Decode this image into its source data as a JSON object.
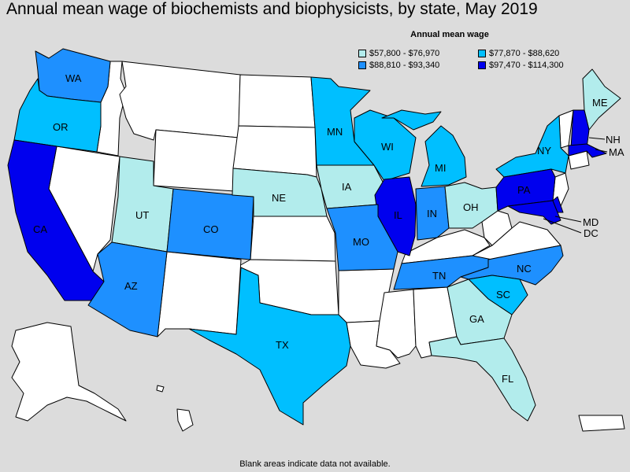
{
  "title": "Annual mean wage of biochemists and biophysicists, by state, May 2019",
  "legend": {
    "title": "Annual mean wage",
    "bins": [
      {
        "label": "$57,800 - $76,970",
        "color": "#b2ecec"
      },
      {
        "label": "$77,870 - $88,620",
        "color": "#00bfff"
      },
      {
        "label": "$88,810 - $93,340",
        "color": "#1e90ff"
      },
      {
        "label": "$97,470 - $114,300",
        "color": "#0000ee"
      }
    ]
  },
  "footnote": "Blank areas indicate data not available.",
  "colors": {
    "no_data": "#ffffff",
    "background": "#dcdcdc"
  },
  "states": {
    "WA": {
      "label": "WA",
      "bin": 2
    },
    "OR": {
      "label": "OR",
      "bin": 1
    },
    "CA": {
      "label": "CA",
      "bin": 3
    },
    "UT": {
      "label": "UT",
      "bin": 0
    },
    "CO": {
      "label": "CO",
      "bin": 2
    },
    "AZ": {
      "label": "AZ",
      "bin": 2
    },
    "NE": {
      "label": "NE",
      "bin": 0
    },
    "IA": {
      "label": "IA",
      "bin": 0
    },
    "MN": {
      "label": "MN",
      "bin": 1
    },
    "WI": {
      "label": "WI",
      "bin": 1
    },
    "MI": {
      "label": "MI",
      "bin": 1
    },
    "IL": {
      "label": "IL",
      "bin": 3
    },
    "IN": {
      "label": "IN",
      "bin": 2
    },
    "OH": {
      "label": "OH",
      "bin": 0
    },
    "MO": {
      "label": "MO",
      "bin": 2
    },
    "TX": {
      "label": "TX",
      "bin": 1
    },
    "TN": {
      "label": "TN",
      "bin": 2
    },
    "NC": {
      "label": "NC",
      "bin": 2
    },
    "SC": {
      "label": "SC",
      "bin": 1
    },
    "GA": {
      "label": "GA",
      "bin": 0
    },
    "FL": {
      "label": "FL",
      "bin": 0
    },
    "NY": {
      "label": "NY",
      "bin": 1
    },
    "PA": {
      "label": "PA",
      "bin": 3
    },
    "ME": {
      "label": "ME",
      "bin": 0
    },
    "NH": {
      "label": "NH",
      "bin": 3
    },
    "MA": {
      "label": "MA",
      "bin": 3
    },
    "MD": {
      "label": "MD",
      "bin": 3
    },
    "DC": {
      "label": "DC",
      "bin": 3
    }
  }
}
